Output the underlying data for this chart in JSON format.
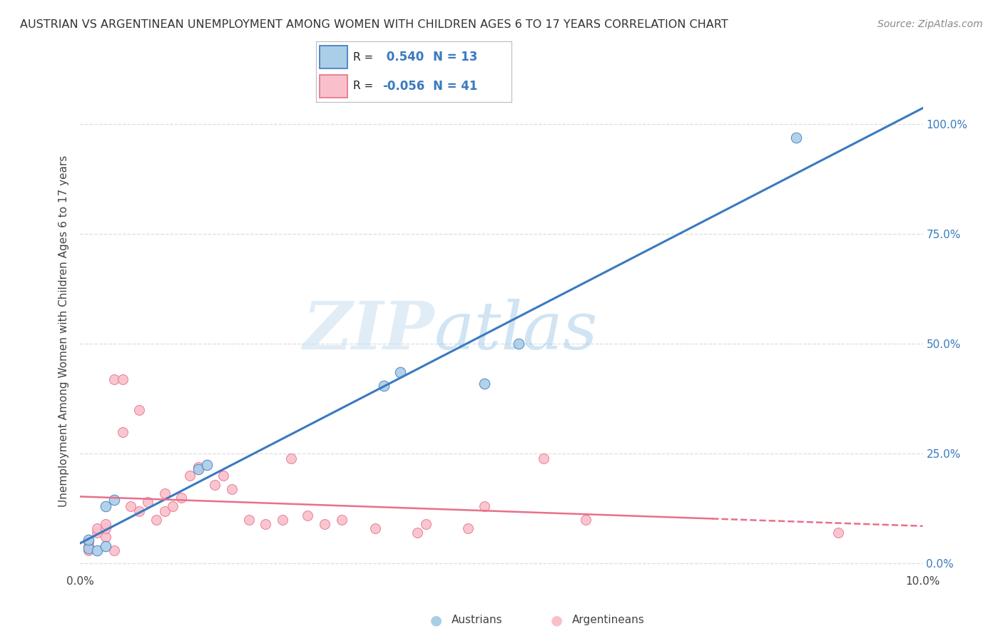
{
  "title": "AUSTRIAN VS ARGENTINEAN UNEMPLOYMENT AMONG WOMEN WITH CHILDREN AGES 6 TO 17 YEARS CORRELATION CHART",
  "source": "Source: ZipAtlas.com",
  "ylabel": "Unemployment Among Women with Children Ages 6 to 17 years",
  "xlim": [
    0.0,
    0.1
  ],
  "ylim": [
    -0.02,
    1.08
  ],
  "xticks": [
    0.0,
    0.1
  ],
  "xtick_labels": [
    "0.0%",
    "10.0%"
  ],
  "yticks": [
    0.0,
    0.25,
    0.5,
    0.75,
    1.0
  ],
  "ytick_labels": [
    "0.0%",
    "25.0%",
    "50.0%",
    "75.0%",
    "100.0%"
  ],
  "legend_R_austrians": " 0.540",
  "legend_N_austrians": "13",
  "legend_R_argentineans": "-0.056",
  "legend_N_argentineans": "41",
  "watermark_zip": "ZIP",
  "watermark_atlas": "atlas",
  "blue_color": "#aacde8",
  "pink_color": "#f9c0cb",
  "blue_line_color": "#3a7abf",
  "pink_line_color": "#e8708a",
  "title_color": "#333333",
  "source_color": "#888888",
  "grid_color": "#dddddd",
  "ytick_color": "#3a7abf",
  "austrians_x": [
    0.001,
    0.001,
    0.002,
    0.003,
    0.003,
    0.004,
    0.014,
    0.015,
    0.036,
    0.038,
    0.048,
    0.052,
    0.085
  ],
  "austrians_y": [
    0.035,
    0.055,
    0.03,
    0.04,
    0.13,
    0.145,
    0.215,
    0.225,
    0.405,
    0.435,
    0.41,
    0.5,
    0.97
  ],
  "argentineans_x": [
    0.001,
    0.001,
    0.001,
    0.002,
    0.002,
    0.003,
    0.003,
    0.003,
    0.004,
    0.004,
    0.005,
    0.005,
    0.006,
    0.007,
    0.007,
    0.008,
    0.009,
    0.01,
    0.01,
    0.011,
    0.012,
    0.013,
    0.014,
    0.016,
    0.017,
    0.018,
    0.02,
    0.022,
    0.024,
    0.025,
    0.027,
    0.029,
    0.031,
    0.035,
    0.04,
    0.041,
    0.046,
    0.048,
    0.055,
    0.06,
    0.09
  ],
  "argentineans_y": [
    0.03,
    0.04,
    0.05,
    0.07,
    0.08,
    0.06,
    0.08,
    0.09,
    0.03,
    0.42,
    0.42,
    0.3,
    0.13,
    0.12,
    0.35,
    0.14,
    0.1,
    0.12,
    0.16,
    0.13,
    0.15,
    0.2,
    0.22,
    0.18,
    0.2,
    0.17,
    0.1,
    0.09,
    0.1,
    0.24,
    0.11,
    0.09,
    0.1,
    0.08,
    0.07,
    0.09,
    0.08,
    0.13,
    0.24,
    0.1,
    0.07
  ]
}
